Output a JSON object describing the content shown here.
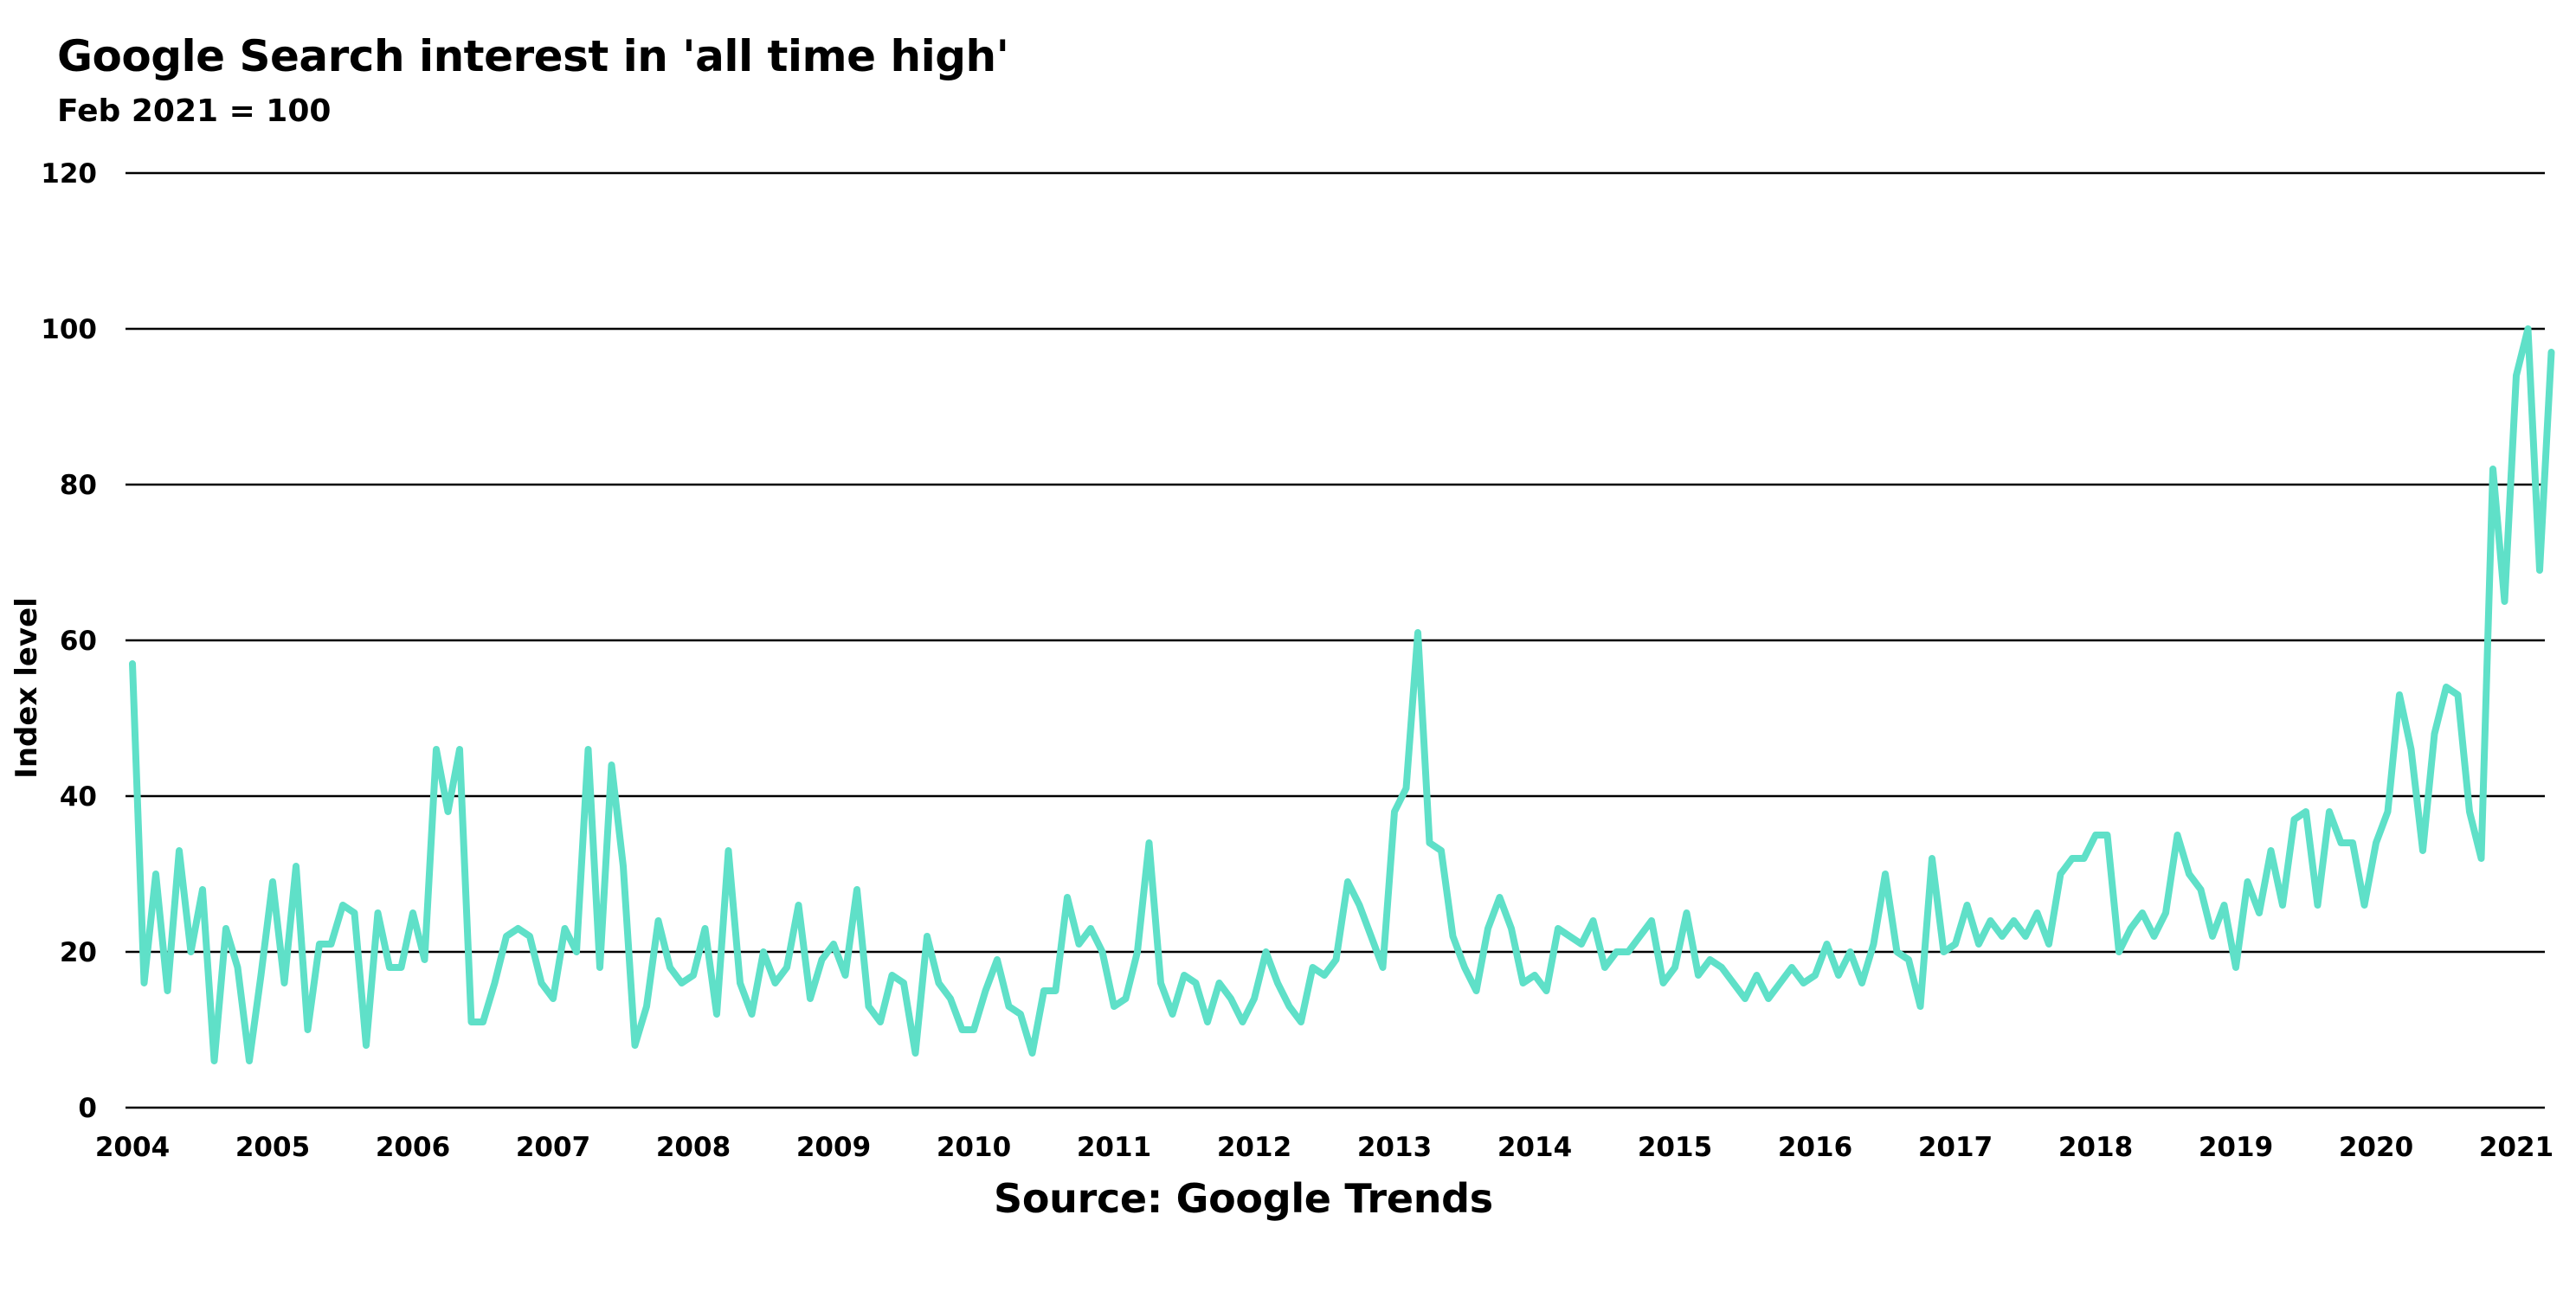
{
  "chart_data": {
    "type": "line",
    "title": "Google Search interest in 'all time high'",
    "subtitle": "Feb 2021 = 100",
    "ylabel": "Index level",
    "xlabel": "",
    "source": "Source: Google Trends",
    "ylim": [
      0,
      120
    ],
    "yticks": [
      0,
      20,
      40,
      60,
      80,
      100,
      120
    ],
    "xticks": [
      "2004",
      "2005",
      "2006",
      "2007",
      "2008",
      "2009",
      "2010",
      "2011",
      "2012",
      "2013",
      "2014",
      "2015",
      "2016",
      "2017",
      "2018",
      "2019",
      "2020",
      "2021"
    ],
    "x_start": "2004-01",
    "grid": "horizontal",
    "line_color": "#5fe0c8",
    "series": [
      {
        "values": [
          57,
          16,
          30,
          15,
          33,
          20,
          28,
          6,
          23,
          18,
          6,
          17,
          29,
          16,
          31,
          10,
          21,
          21,
          26,
          25,
          8,
          25,
          18,
          18,
          25,
          19,
          46,
          38,
          46,
          11,
          11,
          16,
          22,
          23,
          22,
          16,
          14,
          23,
          20,
          46,
          18,
          44,
          31,
          8,
          13,
          24,
          18,
          16,
          17,
          23,
          12,
          33,
          16,
          12,
          20,
          16,
          18,
          26,
          14,
          19,
          21,
          17,
          28,
          13,
          11,
          17,
          16,
          7,
          22,
          16,
          14,
          10,
          10,
          15,
          19,
          13,
          12,
          7,
          15,
          15,
          27,
          21,
          23,
          20,
          13,
          14,
          20,
          34,
          16,
          12,
          17,
          16,
          11,
          16,
          14,
          11,
          14,
          20,
          16,
          13,
          11,
          18,
          17,
          19,
          29,
          26,
          22,
          18,
          38,
          41,
          61,
          34,
          33,
          22,
          18,
          15,
          23,
          27,
          23,
          16,
          17,
          15,
          23,
          22,
          21,
          24,
          18,
          20,
          20,
          22,
          24,
          16,
          18,
          25,
          17,
          19,
          18,
          16,
          14,
          17,
          14,
          16,
          18,
          16,
          17,
          21,
          17,
          20,
          16,
          21,
          30,
          20,
          19,
          13,
          32,
          20,
          21,
          26,
          21,
          24,
          22,
          24,
          22,
          25,
          21,
          30,
          32,
          32,
          35,
          35,
          20,
          23,
          25,
          22,
          25,
          35,
          30,
          28,
          22,
          26,
          18,
          29,
          25,
          33,
          26,
          37,
          38,
          26,
          38,
          34,
          34,
          26,
          34,
          38,
          53,
          46,
          33,
          48,
          54,
          53,
          38,
          32,
          82,
          65,
          94,
          100,
          69,
          97
        ]
      }
    ]
  }
}
